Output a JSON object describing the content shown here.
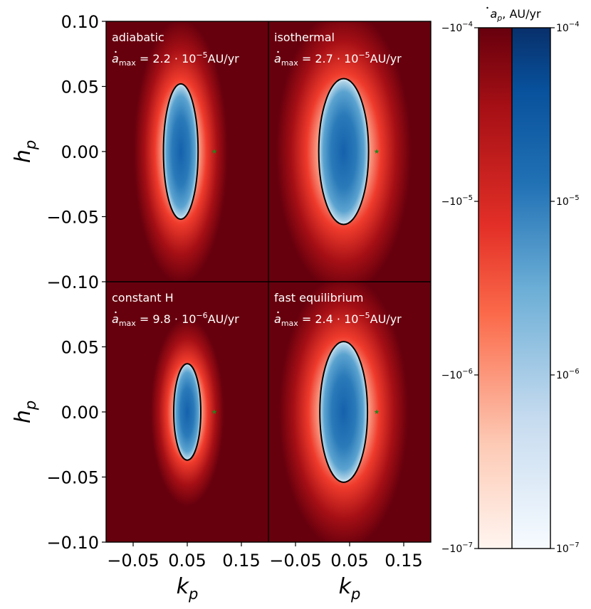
{
  "chart_data": {
    "type": "heatmap",
    "xlabel": "k",
    "xlabel_sub": "p",
    "ylabel": "h",
    "ylabel_sub": "p",
    "xlim": [
      -0.1,
      0.2
    ],
    "ylim": [
      -0.1,
      0.1
    ],
    "x_ticks": [
      -0.05,
      0.05,
      0.15
    ],
    "x_tick_labels": [
      "−0.05",
      "0.05",
      "0.15"
    ],
    "y_ticks": [
      0.1,
      0.05,
      0.0,
      -0.05,
      -0.1
    ],
    "y_tick_labels": [
      "0.10",
      "0.05",
      "0.00",
      "−0.05",
      "−0.10"
    ],
    "star_point": {
      "k": 0.1,
      "h": 0.0
    },
    "panels": [
      {
        "name": "adiabatic",
        "label": "adiabatic",
        "amax_mantissa": "2.2",
        "amax_exp": "−5",
        "ellipse": {
          "k0": 0.038,
          "h0": 0.0,
          "rk": 0.032,
          "rh": 0.052
        }
      },
      {
        "name": "isothermal",
        "label": "isothermal",
        "amax_mantissa": "2.7",
        "amax_exp": "−5",
        "ellipse": {
          "k0": 0.039,
          "h0": 0.0,
          "rk": 0.046,
          "rh": 0.056
        }
      },
      {
        "name": "constant-h",
        "label": "constant H",
        "amax_mantissa": "9.8",
        "amax_exp": "−6",
        "ellipse": {
          "k0": 0.05,
          "h0": 0.0,
          "rk": 0.025,
          "rh": 0.037
        }
      },
      {
        "name": "fast-equilibrium",
        "label": "fast equilibrium",
        "amax_mantissa": "2.4",
        "amax_exp": "−5",
        "ellipse": {
          "k0": 0.039,
          "h0": 0.0,
          "rk": 0.044,
          "rh": 0.054
        }
      }
    ],
    "amax_prefix": "a",
    "amax_sub": "max",
    "amax_equals": " = ",
    "amax_times": " · 10",
    "amax_unit": "AU/yr",
    "colorbar": {
      "title": "a",
      "title_sub": "p",
      "title_unit": ", AU/yr",
      "scale": "log",
      "range": [
        1e-07,
        0.0001
      ],
      "negative_ticks": [
        {
          "value": -0.0001,
          "base": "−10",
          "exp": "−4"
        },
        {
          "value": -1e-05,
          "base": "−10",
          "exp": "−5"
        },
        {
          "value": -1e-06,
          "base": "−10",
          "exp": "−6"
        },
        {
          "value": -1e-07,
          "base": "−10",
          "exp": "−7"
        }
      ],
      "positive_ticks": [
        {
          "value": 0.0001,
          "base": "10",
          "exp": "−4"
        },
        {
          "value": 1e-05,
          "base": "10",
          "exp": "−5"
        },
        {
          "value": 1e-06,
          "base": "10",
          "exp": "−6"
        },
        {
          "value": 1e-07,
          "base": "10",
          "exp": "−7"
        }
      ],
      "negative_cmap": "Reds",
      "positive_cmap": "Blues"
    },
    "colors": {
      "red_dark": "#67000d",
      "red_mid": "#ef3b2c",
      "red_light": "#fff5f0",
      "blue_dark": "#08306b",
      "blue_mid": "#4292c6",
      "blue_light": "#f7fbff",
      "star": "#1a8a1a"
    }
  }
}
